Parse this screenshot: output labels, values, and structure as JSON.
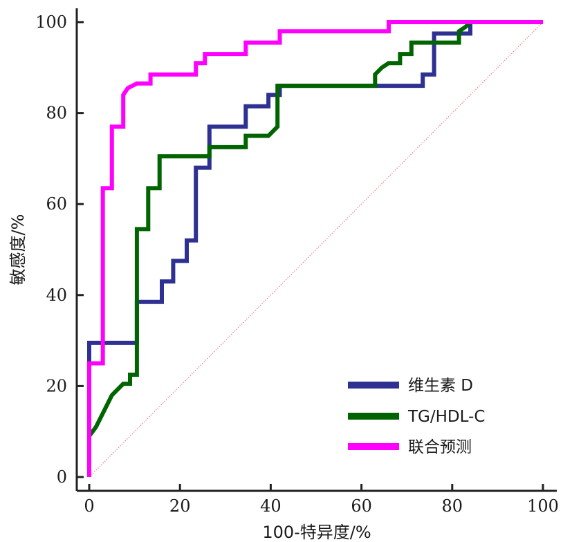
{
  "chart_data": {
    "type": "line",
    "title": "",
    "xlabel": "100-特异度/%",
    "ylabel": "敏感度/%",
    "xlim": [
      0,
      100
    ],
    "ylim": [
      0,
      100
    ],
    "xticks": [
      "0",
      "20",
      "40",
      "60",
      "80",
      "100"
    ],
    "yticks": [
      "0",
      "20",
      "40",
      "60",
      "80",
      "100"
    ],
    "grid": false,
    "legend_position": "bottom-right",
    "reference_line": {
      "name": "diagonal",
      "x": [
        0,
        100
      ],
      "y": [
        0,
        100
      ],
      "color": "#e08080",
      "style": "dotted"
    },
    "series": [
      {
        "name": "维生素 D",
        "color": "#2e3192",
        "x": [
          0,
          0,
          10.5,
          10.5,
          16,
          16,
          18.5,
          18.5,
          21.5,
          21.5,
          23.5,
          23.5,
          26.5,
          26.5,
          34.5,
          34.5,
          39.5,
          39.5,
          42,
          42,
          44,
          44,
          73.5,
          73.5,
          76,
          76,
          84,
          84
        ],
        "y": [
          0,
          29.5,
          29.5,
          38.5,
          38.5,
          43,
          43,
          47.5,
          47.5,
          52,
          52,
          68,
          68,
          77,
          77,
          81.5,
          81.5,
          84,
          84,
          86,
          86,
          86,
          86,
          88.5,
          88.5,
          97.5,
          97.5,
          100
        ]
      },
      {
        "name": "TG/HDL-C",
        "color": "#006400",
        "x": [
          0,
          0,
          1.5,
          1.5,
          5,
          5,
          7.5,
          7.5,
          9,
          9,
          10.5,
          10.5,
          13,
          13,
          15.5,
          15.5,
          26.5,
          26.5,
          34.5,
          34.5,
          39.5,
          41.5,
          41.5,
          63,
          63,
          64.5,
          66,
          68.5,
          68.5,
          71,
          71,
          81.5,
          81.5,
          83,
          84
        ],
        "y": [
          9,
          9,
          11,
          11,
          18,
          18,
          20.5,
          20.5,
          20.5,
          22.5,
          22.5,
          54.5,
          54.5,
          63.5,
          63.5,
          70.5,
          70.5,
          72.5,
          72.5,
          75,
          75,
          77,
          86,
          86,
          88.5,
          90,
          91,
          91,
          93,
          93,
          95.5,
          95.5,
          98,
          99,
          100
        ]
      },
      {
        "name": "联合预测",
        "color": "#ff00ff",
        "x": [
          0,
          0,
          0.5,
          3,
          3,
          5,
          5,
          7.5,
          7.5,
          8.5,
          10.5,
          13.5,
          13.5,
          23.5,
          23.5,
          25.5,
          25.5,
          34.5,
          34.5,
          42,
          42,
          66,
          66,
          100
        ],
        "y": [
          0,
          25,
          25,
          25,
          63.5,
          63.5,
          77,
          77,
          84,
          85.5,
          86.5,
          86.5,
          88.5,
          88.5,
          91,
          91,
          93,
          93,
          95.5,
          95.5,
          98,
          98,
          100,
          100
        ]
      }
    ]
  }
}
